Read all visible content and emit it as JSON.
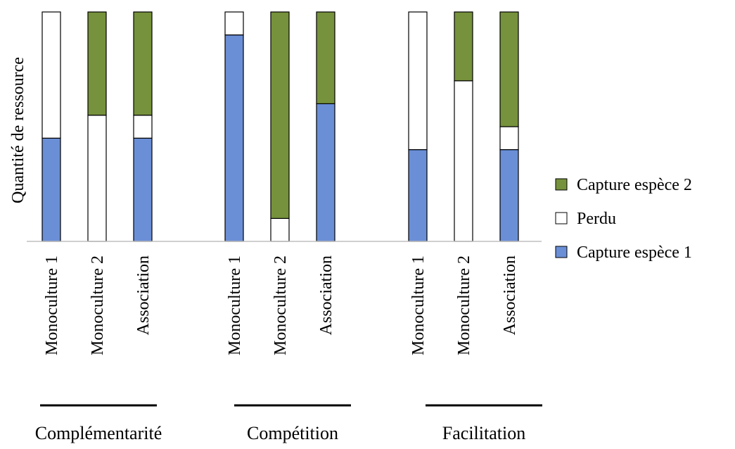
{
  "chart_data": {
    "type": "bar",
    "stacked": true,
    "title": "",
    "ylabel": "Quantité de ressource",
    "xlabel": "",
    "ylim": [
      0,
      100
    ],
    "y_ticks_shown": false,
    "grid": false,
    "legend_position": "right",
    "groups": [
      {
        "name": "Complémentarité",
        "categories": [
          "Monoculture 1",
          "Monoculture 2",
          "Association"
        ]
      },
      {
        "name": "Compétition",
        "categories": [
          "Monoculture 1",
          "Monoculture 2",
          "Association"
        ]
      },
      {
        "name": "Facilitation",
        "categories": [
          "Monoculture 1",
          "Monoculture 2",
          "Association"
        ]
      }
    ],
    "categories": [
      "Monoculture 1",
      "Monoculture 2",
      "Association",
      "Monoculture 1",
      "Monoculture 2",
      "Association",
      "Monoculture 1",
      "Monoculture 2",
      "Association"
    ],
    "series": [
      {
        "name": "Capture espèce 1",
        "color": "#6b8fd6",
        "values": [
          45,
          0,
          45,
          90,
          0,
          60,
          40,
          0,
          40
        ]
      },
      {
        "name": "Perdu",
        "color": "#ffffff",
        "values": [
          55,
          55,
          10,
          10,
          10,
          0,
          60,
          70,
          10
        ]
      },
      {
        "name": "Capture espèce 2",
        "color": "#76923c",
        "values": [
          0,
          45,
          45,
          0,
          90,
          40,
          0,
          30,
          50
        ]
      }
    ],
    "legend": [
      "Capture espèce 2",
      "Perdu",
      "Capture espèce 1"
    ]
  }
}
